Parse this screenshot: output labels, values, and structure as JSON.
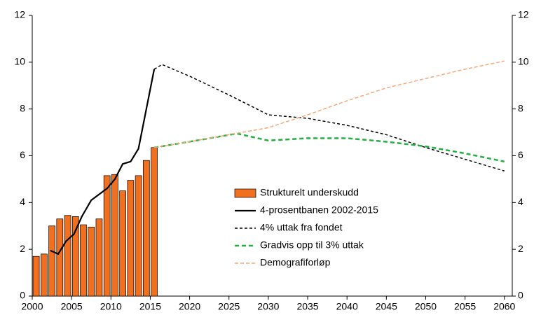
{
  "chart_data": {
    "type": "combo",
    "xlim": [
      2000,
      2061
    ],
    "xticks": [
      2000,
      2005,
      2010,
      2015,
      2020,
      2025,
      2030,
      2035,
      2040,
      2045,
      2050,
      2055,
      2060
    ],
    "ylim": [
      0,
      12
    ],
    "yticks": [
      0,
      2,
      4,
      6,
      8,
      10,
      12
    ],
    "y2lim": [
      0,
      12
    ],
    "y2ticks": [
      0,
      2,
      4,
      6,
      8,
      10,
      12
    ],
    "legend": "lower-center",
    "series": [
      {
        "name": "Strukturelt underskudd",
        "type": "bar",
        "color": "#f07020",
        "x": [
          2000,
          2001,
          2002,
          2003,
          2004,
          2005,
          2006,
          2007,
          2008,
          2009,
          2010,
          2011,
          2012,
          2013,
          2014,
          2015
        ],
        "values": [
          1.7,
          1.8,
          3.0,
          3.3,
          3.45,
          3.4,
          3.05,
          2.95,
          3.3,
          5.15,
          5.2,
          4.5,
          4.95,
          5.15,
          5.8,
          6.35
        ]
      },
      {
        "name": "4-prosentbanen 2002-2015",
        "type": "line",
        "color": "#000000",
        "dash": "",
        "width": 2.2,
        "x": [
          2002.3,
          2003.3,
          2004.3,
          2005.3,
          2006.3,
          2007.5,
          2008.5,
          2009.5,
          2010.5,
          2011.5,
          2012.5,
          2013.5,
          2014.5,
          2015.5
        ],
        "values": [
          1.95,
          1.8,
          2.35,
          2.65,
          3.4,
          4.1,
          4.35,
          4.6,
          5.0,
          5.65,
          5.75,
          6.3,
          8.0,
          9.7
        ]
      },
      {
        "name": "4% uttak fra fondet",
        "type": "line",
        "color": "#000000",
        "dash": "4,3",
        "width": 1.5,
        "x": [
          2015.5,
          2016.5,
          2020,
          2025,
          2030,
          2035,
          2040,
          2045,
          2050,
          2055,
          2060
        ],
        "values": [
          9.7,
          9.9,
          9.4,
          8.6,
          7.75,
          7.6,
          7.3,
          6.9,
          6.35,
          5.85,
          5.35
        ]
      },
      {
        "name": "Gradvis opp til 3% uttak",
        "type": "line",
        "color": "#20b040",
        "dash": "6,4",
        "width": 2.5,
        "x": [
          2015.5,
          2020,
          2026,
          2030,
          2035,
          2040,
          2045,
          2050,
          2055,
          2060
        ],
        "values": [
          6.35,
          6.6,
          6.95,
          6.65,
          6.75,
          6.75,
          6.6,
          6.4,
          6.1,
          5.75
        ]
      },
      {
        "name": "Demografiforløp",
        "type": "line",
        "color": "#f4a878",
        "dash": "5,3",
        "width": 1.5,
        "x": [
          2015.5,
          2020,
          2025,
          2030,
          2035,
          2040,
          2045,
          2050,
          2055,
          2060
        ],
        "values": [
          6.35,
          6.6,
          6.9,
          7.2,
          7.75,
          8.35,
          8.9,
          9.3,
          9.7,
          10.05
        ]
      }
    ]
  }
}
